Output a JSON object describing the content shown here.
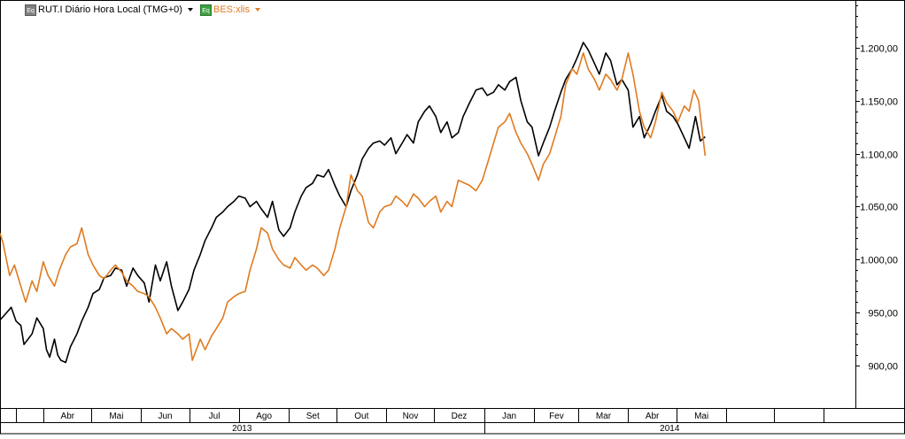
{
  "legend": {
    "series1_label": "RUT.I Diário Hora Local (TMG+0)",
    "series1_icon": "Eq",
    "series2_label": "BES:xlis",
    "series2_icon": "Eq"
  },
  "colors": {
    "series1": "#000000",
    "series2": "#e07a1f",
    "axis": "#000000",
    "grid": "#000000"
  },
  "chart_data": {
    "type": "line",
    "ylim": [
      860,
      1245
    ],
    "y_ticks": [
      "900,00",
      "950,00",
      "1.000,00",
      "1.050,00",
      "1.100,00",
      "1.150,00",
      "1.200,00"
    ],
    "y_tick_values": [
      900,
      950,
      1000,
      1050,
      1100,
      1150,
      1200
    ],
    "x_range": [
      "2013-03-05",
      "2014-05-31"
    ],
    "months": [
      {
        "label": "Abr",
        "date": "2013-04-01"
      },
      {
        "label": "Mai",
        "date": "2013-05-01"
      },
      {
        "label": "Jun",
        "date": "2013-06-01"
      },
      {
        "label": "Jul",
        "date": "2013-07-01"
      },
      {
        "label": "Ago",
        "date": "2013-08-01"
      },
      {
        "label": "Set",
        "date": "2013-09-01"
      },
      {
        "label": "Out",
        "date": "2013-10-01"
      },
      {
        "label": "Nov",
        "date": "2013-11-01"
      },
      {
        "label": "Dez",
        "date": "2013-12-01"
      },
      {
        "label": "Jan",
        "date": "2014-01-01"
      },
      {
        "label": "Fev",
        "date": "2014-02-01"
      },
      {
        "label": "Mar",
        "date": "2014-03-01"
      },
      {
        "label": "Abr",
        "date": "2014-04-01"
      },
      {
        "label": "Mai",
        "date": "2014-05-01"
      },
      {
        "label": "",
        "date": "2014-06-01"
      },
      {
        "label": "",
        "date": "2014-07-01"
      },
      {
        "label": "",
        "date": "2014-08-01"
      }
    ],
    "years": [
      {
        "label": "2013",
        "start": "2013-01-01",
        "end": "2014-01-01"
      },
      {
        "label": "2014",
        "start": "2014-01-01",
        "end": "2015-01-01"
      }
    ],
    "series": [
      {
        "name": "RUT.I Diário Hora Local (TMG+0)",
        "color": "#000000",
        "points": [
          [
            "2013-03-05",
            943
          ],
          [
            "2013-03-08",
            948
          ],
          [
            "2013-03-12",
            955
          ],
          [
            "2013-03-15",
            942
          ],
          [
            "2013-03-18",
            938
          ],
          [
            "2013-03-20",
            920
          ],
          [
            "2013-03-25",
            930
          ],
          [
            "2013-03-28",
            945
          ],
          [
            "2013-04-01",
            935
          ],
          [
            "2013-04-03",
            915
          ],
          [
            "2013-04-05",
            908
          ],
          [
            "2013-04-08",
            925
          ],
          [
            "2013-04-10",
            910
          ],
          [
            "2013-04-12",
            905
          ],
          [
            "2013-04-15",
            903
          ],
          [
            "2013-04-18",
            918
          ],
          [
            "2013-04-22",
            930
          ],
          [
            "2013-04-25",
            942
          ],
          [
            "2013-04-29",
            955
          ],
          [
            "2013-05-02",
            968
          ],
          [
            "2013-05-06",
            972
          ],
          [
            "2013-05-09",
            983
          ],
          [
            "2013-05-13",
            985
          ],
          [
            "2013-05-16",
            992
          ],
          [
            "2013-05-20",
            990
          ],
          [
            "2013-05-23",
            975
          ],
          [
            "2013-05-27",
            992
          ],
          [
            "2013-05-30",
            985
          ],
          [
            "2013-06-03",
            978
          ],
          [
            "2013-06-06",
            960
          ],
          [
            "2013-06-10",
            995
          ],
          [
            "2013-06-13",
            980
          ],
          [
            "2013-06-17",
            998
          ],
          [
            "2013-06-20",
            975
          ],
          [
            "2013-06-24",
            952
          ],
          [
            "2013-06-27",
            960
          ],
          [
            "2013-07-01",
            972
          ],
          [
            "2013-07-04",
            990
          ],
          [
            "2013-07-08",
            1005
          ],
          [
            "2013-07-11",
            1018
          ],
          [
            "2013-07-15",
            1030
          ],
          [
            "2013-07-18",
            1040
          ],
          [
            "2013-07-22",
            1045
          ],
          [
            "2013-07-25",
            1050
          ],
          [
            "2013-07-29",
            1055
          ],
          [
            "2013-08-01",
            1060
          ],
          [
            "2013-08-05",
            1058
          ],
          [
            "2013-08-08",
            1050
          ],
          [
            "2013-08-12",
            1055
          ],
          [
            "2013-08-15",
            1048
          ],
          [
            "2013-08-19",
            1040
          ],
          [
            "2013-08-22",
            1055
          ],
          [
            "2013-08-26",
            1028
          ],
          [
            "2013-08-29",
            1022
          ],
          [
            "2013-09-02",
            1030
          ],
          [
            "2013-09-05",
            1045
          ],
          [
            "2013-09-09",
            1060
          ],
          [
            "2013-09-12",
            1068
          ],
          [
            "2013-09-16",
            1072
          ],
          [
            "2013-09-19",
            1080
          ],
          [
            "2013-09-23",
            1078
          ],
          [
            "2013-09-26",
            1085
          ],
          [
            "2013-09-30",
            1070
          ],
          [
            "2013-10-03",
            1060
          ],
          [
            "2013-10-07",
            1050
          ],
          [
            "2013-10-10",
            1065
          ],
          [
            "2013-10-14",
            1080
          ],
          [
            "2013-10-17",
            1095
          ],
          [
            "2013-10-21",
            1105
          ],
          [
            "2013-10-24",
            1110
          ],
          [
            "2013-10-28",
            1112
          ],
          [
            "2013-10-31",
            1108
          ],
          [
            "2013-11-04",
            1115
          ],
          [
            "2013-11-07",
            1100
          ],
          [
            "2013-11-11",
            1110
          ],
          [
            "2013-11-14",
            1118
          ],
          [
            "2013-11-18",
            1110
          ],
          [
            "2013-11-21",
            1130
          ],
          [
            "2013-11-25",
            1140
          ],
          [
            "2013-11-28",
            1145
          ],
          [
            "2013-12-02",
            1135
          ],
          [
            "2013-12-05",
            1120
          ],
          [
            "2013-12-09",
            1130
          ],
          [
            "2013-12-12",
            1115
          ],
          [
            "2013-12-16",
            1120
          ],
          [
            "2013-12-19",
            1135
          ],
          [
            "2013-12-23",
            1148
          ],
          [
            "2013-12-27",
            1160
          ],
          [
            "2013-12-31",
            1162
          ],
          [
            "2014-01-03",
            1155
          ],
          [
            "2014-01-07",
            1158
          ],
          [
            "2014-01-10",
            1165
          ],
          [
            "2014-01-14",
            1160
          ],
          [
            "2014-01-17",
            1168
          ],
          [
            "2014-01-21",
            1172
          ],
          [
            "2014-01-24",
            1150
          ],
          [
            "2014-01-28",
            1130
          ],
          [
            "2014-01-31",
            1125
          ],
          [
            "2014-02-04",
            1098
          ],
          [
            "2014-02-07",
            1110
          ],
          [
            "2014-02-11",
            1125
          ],
          [
            "2014-02-14",
            1140
          ],
          [
            "2014-02-18",
            1158
          ],
          [
            "2014-02-21",
            1170
          ],
          [
            "2014-02-25",
            1180
          ],
          [
            "2014-02-28",
            1190
          ],
          [
            "2014-03-04",
            1205
          ],
          [
            "2014-03-07",
            1198
          ],
          [
            "2014-03-11",
            1185
          ],
          [
            "2014-03-14",
            1175
          ],
          [
            "2014-03-18",
            1195
          ],
          [
            "2014-03-21",
            1188
          ],
          [
            "2014-03-25",
            1165
          ],
          [
            "2014-03-28",
            1170
          ],
          [
            "2014-04-01",
            1160
          ],
          [
            "2014-04-04",
            1125
          ],
          [
            "2014-04-08",
            1135
          ],
          [
            "2014-04-11",
            1115
          ],
          [
            "2014-04-15",
            1128
          ],
          [
            "2014-04-18",
            1140
          ],
          [
            "2014-04-22",
            1155
          ],
          [
            "2014-04-25",
            1140
          ],
          [
            "2014-04-29",
            1135
          ],
          [
            "2014-05-02",
            1128
          ],
          [
            "2014-05-06",
            1115
          ],
          [
            "2014-05-09",
            1105
          ],
          [
            "2014-05-13",
            1135
          ],
          [
            "2014-05-16",
            1112
          ],
          [
            "2014-05-19",
            1116
          ]
        ]
      },
      {
        "name": "BES:xlis",
        "color": "#e07a1f",
        "points": [
          [
            "2013-03-05",
            1025
          ],
          [
            "2013-03-07",
            1015
          ],
          [
            "2013-03-11",
            985
          ],
          [
            "2013-03-14",
            995
          ],
          [
            "2013-03-18",
            975
          ],
          [
            "2013-03-21",
            960
          ],
          [
            "2013-03-25",
            980
          ],
          [
            "2013-03-28",
            970
          ],
          [
            "2013-04-01",
            998
          ],
          [
            "2013-04-04",
            985
          ],
          [
            "2013-04-08",
            975
          ],
          [
            "2013-04-11",
            990
          ],
          [
            "2013-04-15",
            1005
          ],
          [
            "2013-04-18",
            1012
          ],
          [
            "2013-04-22",
            1015
          ],
          [
            "2013-04-25",
            1030
          ],
          [
            "2013-04-29",
            1005
          ],
          [
            "2013-05-02",
            995
          ],
          [
            "2013-05-06",
            985
          ],
          [
            "2013-05-09",
            982
          ],
          [
            "2013-05-13",
            990
          ],
          [
            "2013-05-16",
            995
          ],
          [
            "2013-05-20",
            988
          ],
          [
            "2013-05-23",
            980
          ],
          [
            "2013-05-27",
            975
          ],
          [
            "2013-05-30",
            970
          ],
          [
            "2013-06-03",
            968
          ],
          [
            "2013-06-06",
            965
          ],
          [
            "2013-06-10",
            955
          ],
          [
            "2013-06-13",
            945
          ],
          [
            "2013-06-17",
            930
          ],
          [
            "2013-06-20",
            935
          ],
          [
            "2013-06-24",
            930
          ],
          [
            "2013-06-27",
            925
          ],
          [
            "2013-07-01",
            930
          ],
          [
            "2013-07-03",
            905
          ],
          [
            "2013-07-08",
            925
          ],
          [
            "2013-07-11",
            915
          ],
          [
            "2013-07-15",
            928
          ],
          [
            "2013-07-18",
            935
          ],
          [
            "2013-07-22",
            945
          ],
          [
            "2013-07-25",
            960
          ],
          [
            "2013-07-29",
            965
          ],
          [
            "2013-08-01",
            968
          ],
          [
            "2013-08-05",
            970
          ],
          [
            "2013-08-08",
            990
          ],
          [
            "2013-08-12",
            1010
          ],
          [
            "2013-08-15",
            1030
          ],
          [
            "2013-08-19",
            1025
          ],
          [
            "2013-08-22",
            1010
          ],
          [
            "2013-08-26",
            1000
          ],
          [
            "2013-08-29",
            995
          ],
          [
            "2013-09-02",
            992
          ],
          [
            "2013-09-05",
            1002
          ],
          [
            "2013-09-09",
            995
          ],
          [
            "2013-09-12",
            990
          ],
          [
            "2013-09-16",
            995
          ],
          [
            "2013-09-19",
            992
          ],
          [
            "2013-09-23",
            985
          ],
          [
            "2013-09-26",
            990
          ],
          [
            "2013-09-30",
            1010
          ],
          [
            "2013-10-03",
            1030
          ],
          [
            "2013-10-07",
            1050
          ],
          [
            "2013-10-10",
            1080
          ],
          [
            "2013-10-14",
            1065
          ],
          [
            "2013-10-17",
            1060
          ],
          [
            "2013-10-21",
            1035
          ],
          [
            "2013-10-24",
            1030
          ],
          [
            "2013-10-28",
            1045
          ],
          [
            "2013-10-31",
            1050
          ],
          [
            "2013-11-04",
            1052
          ],
          [
            "2013-11-07",
            1060
          ],
          [
            "2013-11-11",
            1055
          ],
          [
            "2013-11-14",
            1050
          ],
          [
            "2013-11-18",
            1062
          ],
          [
            "2013-11-21",
            1058
          ],
          [
            "2013-11-25",
            1050
          ],
          [
            "2013-11-28",
            1055
          ],
          [
            "2013-12-02",
            1060
          ],
          [
            "2013-12-05",
            1045
          ],
          [
            "2013-12-09",
            1055
          ],
          [
            "2013-12-12",
            1050
          ],
          [
            "2013-12-16",
            1075
          ],
          [
            "2013-12-23",
            1070
          ],
          [
            "2013-12-27",
            1065
          ],
          [
            "2013-12-31",
            1075
          ],
          [
            "2014-01-03",
            1090
          ],
          [
            "2014-01-07",
            1110
          ],
          [
            "2014-01-10",
            1125
          ],
          [
            "2014-01-14",
            1130
          ],
          [
            "2014-01-17",
            1138
          ],
          [
            "2014-01-21",
            1120
          ],
          [
            "2014-01-24",
            1110
          ],
          [
            "2014-01-28",
            1100
          ],
          [
            "2014-01-31",
            1090
          ],
          [
            "2014-02-04",
            1075
          ],
          [
            "2014-02-07",
            1090
          ],
          [
            "2014-02-11",
            1100
          ],
          [
            "2014-02-14",
            1115
          ],
          [
            "2014-02-18",
            1135
          ],
          [
            "2014-02-21",
            1165
          ],
          [
            "2014-02-25",
            1180
          ],
          [
            "2014-02-28",
            1175
          ],
          [
            "2014-03-04",
            1195
          ],
          [
            "2014-03-07",
            1180
          ],
          [
            "2014-03-11",
            1170
          ],
          [
            "2014-03-14",
            1160
          ],
          [
            "2014-03-18",
            1175
          ],
          [
            "2014-03-21",
            1170
          ],
          [
            "2014-03-25",
            1160
          ],
          [
            "2014-03-28",
            1170
          ],
          [
            "2014-04-01",
            1195
          ],
          [
            "2014-04-04",
            1175
          ],
          [
            "2014-04-08",
            1140
          ],
          [
            "2014-04-11",
            1125
          ],
          [
            "2014-04-15",
            1115
          ],
          [
            "2014-04-18",
            1130
          ],
          [
            "2014-04-22",
            1158
          ],
          [
            "2014-04-25",
            1148
          ],
          [
            "2014-04-29",
            1140
          ],
          [
            "2014-05-02",
            1130
          ],
          [
            "2014-05-06",
            1145
          ],
          [
            "2014-05-09",
            1140
          ],
          [
            "2014-05-12",
            1160
          ],
          [
            "2014-05-15",
            1150
          ],
          [
            "2014-05-19",
            1098
          ]
        ]
      }
    ]
  }
}
